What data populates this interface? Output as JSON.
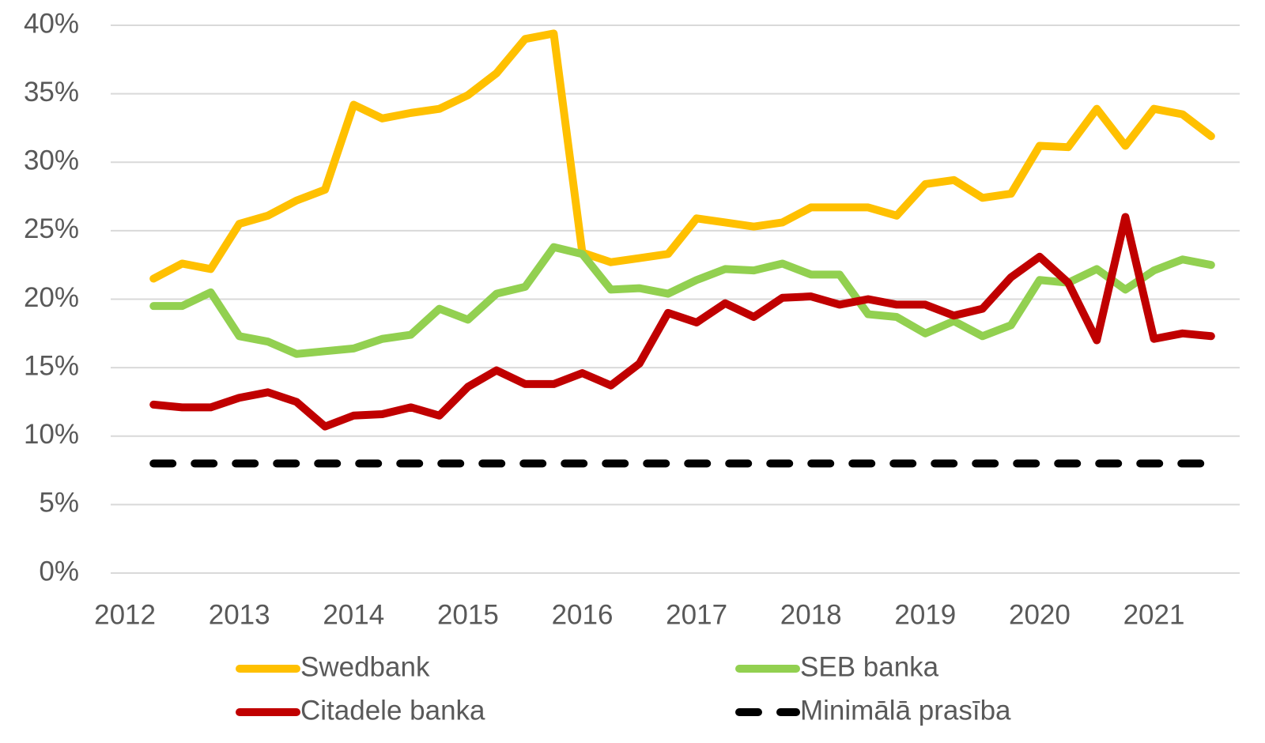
{
  "chart_data": {
    "type": "line",
    "x": [
      2012.25,
      2012.5,
      2012.75,
      2013,
      2013.25,
      2013.5,
      2013.75,
      2014,
      2014.25,
      2014.5,
      2014.75,
      2015,
      2015.25,
      2015.5,
      2015.75,
      2016,
      2016.25,
      2016.5,
      2016.75,
      2017,
      2017.25,
      2017.5,
      2017.75,
      2018,
      2018.25,
      2018.5,
      2018.75,
      2019,
      2019.25,
      2019.5,
      2019.75,
      2020,
      2020.25,
      2020.5,
      2020.75,
      2021,
      2021.25,
      2021.5
    ],
    "series": [
      {
        "name": "Swedbank",
        "color": "#FFC000",
        "values": [
          21.5,
          22.6,
          22.2,
          25.5,
          26.1,
          27.2,
          28.0,
          34.2,
          33.2,
          33.6,
          33.9,
          34.9,
          36.5,
          39.0,
          39.4,
          23.4,
          22.7,
          23.0,
          23.3,
          25.9,
          25.6,
          25.3,
          25.6,
          26.7,
          26.7,
          26.7,
          26.1,
          28.4,
          28.7,
          27.4,
          27.7,
          31.2,
          31.1,
          33.9,
          31.2,
          33.9,
          33.5,
          31.9
        ]
      },
      {
        "name": "SEB banka",
        "color": "#92D050",
        "values": [
          19.5,
          19.5,
          20.5,
          17.3,
          16.9,
          16.0,
          16.2,
          16.4,
          17.1,
          17.4,
          19.3,
          18.5,
          20.4,
          20.9,
          23.8,
          23.3,
          20.7,
          20.8,
          20.4,
          21.4,
          22.2,
          22.1,
          22.6,
          21.8,
          21.8,
          18.9,
          18.7,
          17.5,
          18.4,
          17.3,
          18.1,
          21.4,
          21.2,
          22.2,
          20.7,
          22.1,
          22.9,
          22.5
        ]
      },
      {
        "name": "Citadele banka",
        "color": "#C00000",
        "values": [
          12.3,
          12.1,
          12.1,
          12.8,
          13.2,
          12.5,
          10.7,
          11.5,
          11.6,
          12.1,
          11.5,
          13.6,
          14.8,
          13.8,
          13.8,
          14.6,
          13.7,
          15.3,
          19.0,
          18.3,
          19.7,
          18.7,
          20.1,
          20.2,
          19.6,
          20.0,
          19.6,
          19.6,
          18.8,
          19.3,
          21.6,
          23.1,
          21.2,
          17.0,
          26.0,
          17.1,
          17.5,
          17.3
        ]
      },
      {
        "name": "Minimālā prasība",
        "color": "#000000",
        "dashed": true,
        "values": [
          8,
          8,
          8,
          8,
          8,
          8,
          8,
          8,
          8,
          8,
          8,
          8,
          8,
          8,
          8,
          8,
          8,
          8,
          8,
          8,
          8,
          8,
          8,
          8,
          8,
          8,
          8,
          8,
          8,
          8,
          8,
          8,
          8,
          8,
          8,
          8,
          8,
          8
        ]
      }
    ],
    "xlim": [
      2011.875,
      2021.75
    ],
    "xticks": [
      2012,
      2013,
      2014,
      2015,
      2016,
      2017,
      2018,
      2019,
      2020,
      2021
    ],
    "ylim": [
      0,
      40
    ],
    "yticks": [
      {
        "value": 0,
        "label": "0%"
      },
      {
        "value": 5,
        "label": "5%"
      },
      {
        "value": 10,
        "label": "10%"
      },
      {
        "value": 15,
        "label": "15%"
      },
      {
        "value": 20,
        "label": "20%"
      },
      {
        "value": 25,
        "label": "25%"
      },
      {
        "value": 30,
        "label": "30%"
      },
      {
        "value": 35,
        "label": "35%"
      },
      {
        "value": 40,
        "label": "40%"
      }
    ],
    "grid": true,
    "legend": "bottom"
  }
}
